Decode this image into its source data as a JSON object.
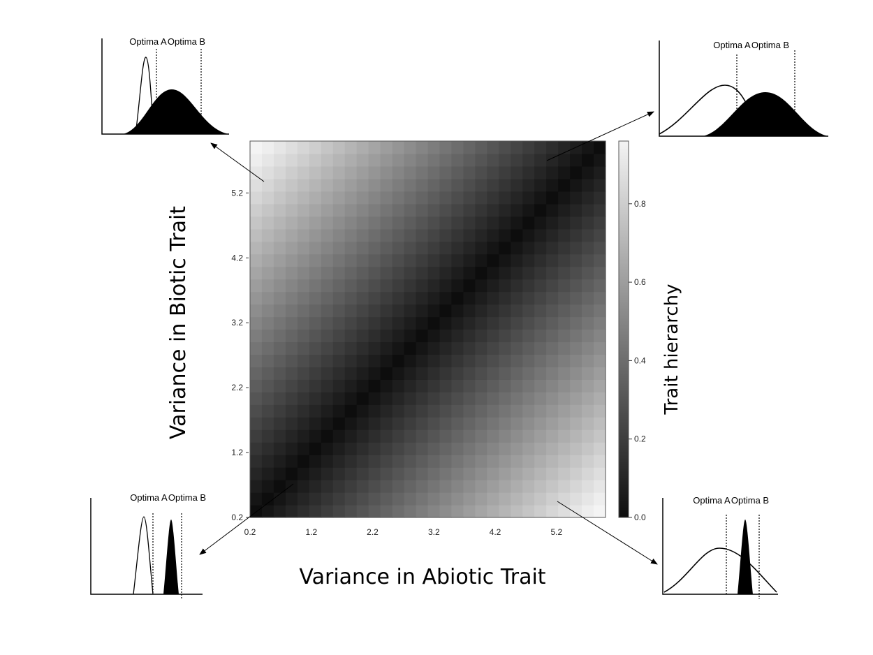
{
  "chart_data": {
    "type": "heatmap",
    "xlabel": "Variance in Abiotic Trait",
    "ylabel": "Variance in Biotic Trait",
    "colorbar_label": "Trait hierarchy",
    "x_ticks": [
      "0.2",
      "1.2",
      "2.2",
      "3.2",
      "4.2",
      "5.2"
    ],
    "y_ticks": [
      "0.2",
      "1.2",
      "2.2",
      "3.2",
      "4.2",
      "5.2"
    ],
    "x_range": [
      0.2,
      6.0
    ],
    "y_range": [
      0.2,
      6.0
    ],
    "grid_size": 30,
    "colorbar_ticks": [
      "0.0",
      "0.2",
      "0.4",
      "0.6",
      "0.8"
    ],
    "value_range": [
      0.0,
      0.96
    ],
    "colormap": [
      "#0d0d0d",
      "#f4f4f4"
    ],
    "z_function": "|x - y| / 5.8 (0 on diagonal, ~0.96 at opposite corners)"
  },
  "insets": [
    {
      "position": "top-left",
      "labels": [
        "Optima A",
        "Optima B"
      ]
    },
    {
      "position": "top-right",
      "labels": [
        "Optima A",
        "Optima B"
      ]
    },
    {
      "position": "bottom-left",
      "labels": [
        "Optima A",
        "Optima B"
      ]
    },
    {
      "position": "bottom-right",
      "labels": [
        "Optima A",
        "Optima B"
      ]
    }
  ]
}
